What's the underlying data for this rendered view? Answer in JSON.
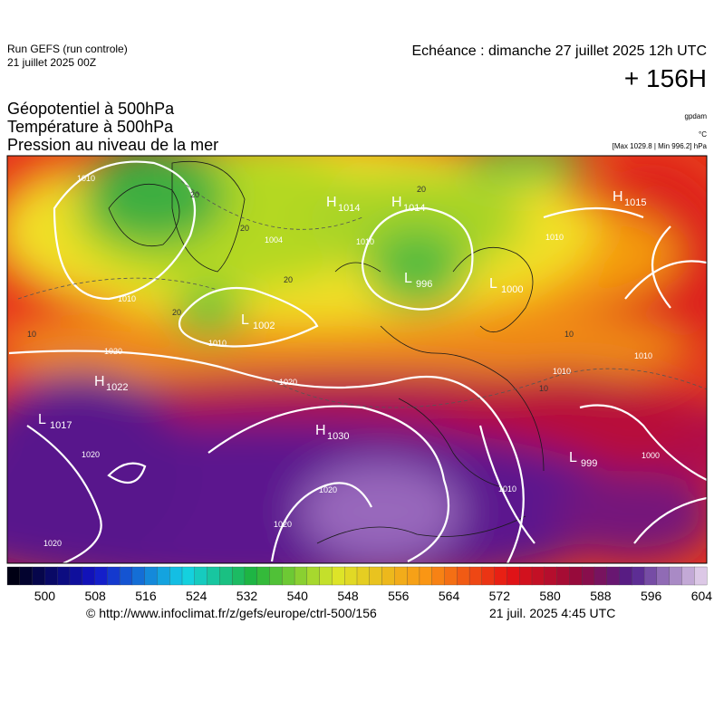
{
  "header": {
    "run": "Run GEFS (run controle)",
    "run_date": "21 juillet 2025 00Z",
    "valid_time": "Echéance : dimanche 27 juillet 2025 12h UTC",
    "lead_time": "+ 156H",
    "fields": [
      "Géopotentiel à 500hPa",
      "Température à 500hPa",
      "Pression au niveau de la mer"
    ],
    "unit_geopotential": "gpdam",
    "unit_temperature": "°C",
    "pressure_range": "[Max 1029.8 | Min 996.2] hPa"
  },
  "pressure_centers": [
    {
      "kind": "H",
      "value": 1014
    },
    {
      "kind": "H",
      "value": 1014
    },
    {
      "kind": "H",
      "value": 1015
    },
    {
      "kind": "L",
      "value": 996
    },
    {
      "kind": "L",
      "value": 1000
    },
    {
      "kind": "L",
      "value": 1002
    },
    {
      "kind": "H",
      "value": 1022
    },
    {
      "kind": "L",
      "value": 1017
    },
    {
      "kind": "H",
      "value": 1030
    },
    {
      "kind": "L",
      "value": 999
    }
  ],
  "isobar_labels": [
    1010,
    1010,
    1010,
    1020,
    1020,
    1020,
    1020,
    1020,
    1020,
    1010,
    1010,
    1010,
    1010,
    1000,
    1010,
    1004
  ],
  "isotherm_labels": [
    20,
    20,
    20,
    20,
    20,
    10,
    10,
    10
  ],
  "colorbar": {
    "ticks": [
      500,
      508,
      516,
      524,
      532,
      540,
      548,
      556,
      564,
      572,
      580,
      588,
      596,
      604
    ]
  },
  "footer": {
    "url": "© http://www.infoclimat.fr/z/gefs/europe/ctrl-500/156",
    "generated": "21 juil. 2025  4:45 UTC"
  }
}
